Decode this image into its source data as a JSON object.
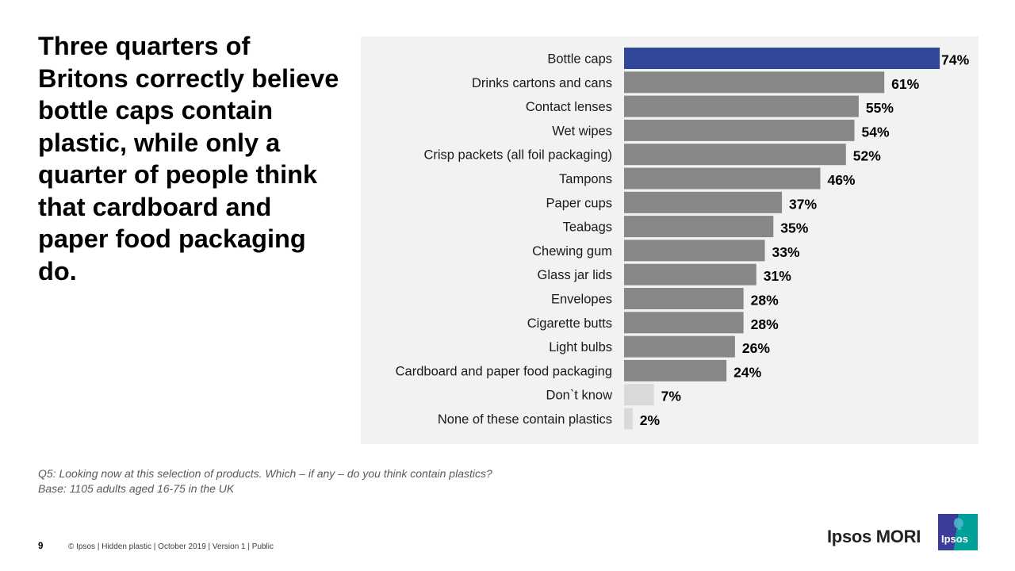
{
  "headline": "Three quarters of Britons correctly believe bottle caps contain plastic, while only a quarter of people think that cardboard and paper food packaging do.",
  "chart_data": {
    "type": "bar",
    "orientation": "horizontal",
    "title": "",
    "xlabel": "",
    "ylabel": "",
    "xlim": [
      0,
      100
    ],
    "grid": false,
    "legend": "none",
    "value_suffix": "%",
    "categories": [
      "Bottle caps",
      "Drinks cartons and cans",
      "Contact lenses",
      "Wet wipes",
      "Crisp packets (all foil packaging)",
      "Tampons",
      "Paper cups",
      "Teabags",
      "Chewing gum",
      "Glass jar lids",
      "Envelopes",
      "Cigarette butts",
      "Light bulbs",
      "Cardboard and paper food packaging",
      "Don`t know",
      "None of these contain plastics"
    ],
    "values": [
      74,
      61,
      55,
      54,
      52,
      46,
      37,
      35,
      33,
      31,
      28,
      28,
      26,
      24,
      7,
      2
    ],
    "bar_colors": [
      "#31479a",
      "#878787",
      "#878787",
      "#878787",
      "#878787",
      "#878787",
      "#878787",
      "#878787",
      "#878787",
      "#878787",
      "#878787",
      "#878787",
      "#878787",
      "#878787",
      "#d9d9d9",
      "#d9d9d9"
    ],
    "highlight_color": "#31479a",
    "default_color": "#878787",
    "muted_color": "#d9d9d9",
    "background_color": "#f2f2f2"
  },
  "notes": {
    "question": "Q5: Looking now  at this selection of products. Which – if any – do you think contain plastics?",
    "base": "Base: 1105 adults aged 16-75 in the UK"
  },
  "footer": {
    "page_number": "9",
    "text": "© Ipsos | Hidden plastic | October 2019 | Version 1 | Public"
  },
  "branding": {
    "name": "Ipsos MORI",
    "logo_text": "Ipsos",
    "logo_colors": {
      "left": "#3b3d9a",
      "right": "#00a09a"
    }
  }
}
